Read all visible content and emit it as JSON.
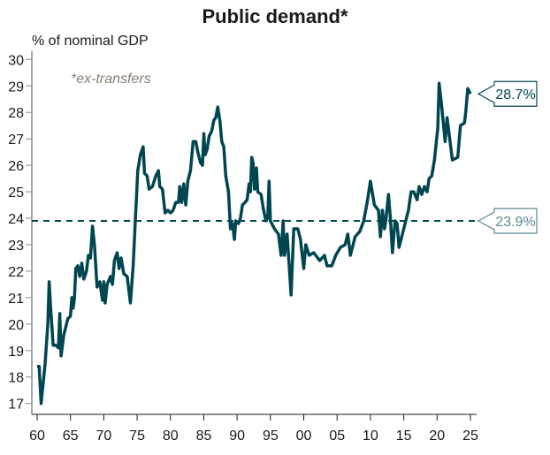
{
  "chart_data": {
    "type": "line",
    "title": "Public demand*",
    "ylabel": "% of nominal GDP",
    "annotation": "*ex-transfers",
    "xlim": [
      1960,
      2025
    ],
    "ylim": [
      17,
      30
    ],
    "x_tick_labels": [
      "60",
      "65",
      "70",
      "75",
      "80",
      "85",
      "90",
      "95",
      "00",
      "05",
      "10",
      "15",
      "20",
      "25"
    ],
    "x_tick_values": [
      1960,
      1965,
      1970,
      1975,
      1980,
      1985,
      1990,
      1995,
      2000,
      2005,
      2010,
      2015,
      2020,
      2025
    ],
    "y_ticks": [
      17,
      18,
      19,
      20,
      21,
      22,
      23,
      24,
      25,
      26,
      27,
      28,
      29,
      30
    ],
    "grid": false,
    "line_color": "#004651",
    "average": {
      "value": 23.9,
      "label": "23.9%",
      "color": "#5a8a93"
    },
    "latest": {
      "value": 28.7,
      "label": "28.7%"
    },
    "series": [
      {
        "x": [
          1960.0,
          1960.3,
          1960.6,
          1961.2,
          1961.6,
          1961.8,
          1962.0,
          1962.4,
          1962.8,
          1963.2,
          1963.4,
          1963.6,
          1964.0,
          1964.6,
          1965.0,
          1965.2,
          1965.4,
          1965.6,
          1965.8,
          1966.1,
          1966.4,
          1966.7,
          1967.0,
          1967.4,
          1967.7,
          1968.0,
          1968.3,
          1968.6,
          1969.0,
          1969.4,
          1969.8,
          1970.0,
          1970.2,
          1970.5,
          1971.0,
          1971.3,
          1971.6,
          1972.0,
          1972.3,
          1972.6,
          1973.0,
          1973.5,
          1974.0,
          1974.4,
          1974.8,
          1975.1,
          1975.5,
          1975.9,
          1976.1,
          1976.5,
          1976.8,
          1977.3,
          1977.8,
          1978.2,
          1978.4,
          1978.8,
          1979.2,
          1979.6,
          1980.0,
          1980.4,
          1980.8,
          1981.2,
          1981.4,
          1981.7,
          1982.0,
          1982.3,
          1982.6,
          1983.0,
          1983.4,
          1983.8,
          1984.1,
          1984.5,
          1984.8,
          1985.0,
          1985.2,
          1985.5,
          1985.8,
          1986.2,
          1986.5,
          1986.8,
          1987.1,
          1987.4,
          1987.7,
          1988.0,
          1988.3,
          1988.7,
          1989.0,
          1989.3,
          1989.6,
          1989.8,
          1990.2,
          1990.5,
          1990.8,
          1991.2,
          1991.5,
          1991.8,
          1992.0,
          1992.2,
          1992.4,
          1992.6,
          1992.9,
          1993.1,
          1993.6,
          1993.9,
          1994.3,
          1994.6,
          1994.8,
          1995.0,
          1995.6,
          1996.2,
          1996.6,
          1996.9,
          1997.1,
          1997.5,
          1998.1,
          1998.5,
          1999.1,
          1999.5,
          2000.0,
          2000.3,
          2000.8,
          2001.5,
          2002.4,
          2003.1,
          2003.5,
          2004.2,
          2004.8,
          2005.5,
          2006.2,
          2006.6,
          2007.0,
          2007.7,
          2008.4,
          2009.0,
          2009.5,
          2010.0,
          2010.6,
          2011.2,
          2011.5,
          2011.8,
          2012.1,
          2012.3,
          2012.7,
          2013.0,
          2013.3,
          2013.7,
          2014.0,
          2014.3,
          2015.0,
          2015.7,
          2016.1,
          2016.5,
          2017.0,
          2017.3,
          2017.7,
          2018.1,
          2018.5,
          2018.8,
          2019.2,
          2019.6,
          2020.1,
          2020.3,
          2020.7,
          2021.2,
          2021.5,
          2021.9,
          2022.3,
          2023.1,
          2023.5,
          2024.1,
          2024.3,
          2024.6,
          2025.0
        ],
        "y": [
          18.4,
          18.4,
          17.0,
          18.5,
          20.0,
          21.6,
          20.7,
          19.2,
          19.2,
          19.1,
          20.4,
          18.8,
          19.6,
          20.2,
          20.3,
          21.0,
          20.6,
          21.0,
          22.1,
          22.2,
          21.8,
          22.3,
          21.7,
          22.0,
          22.6,
          22.5,
          23.7,
          23.0,
          21.4,
          21.6,
          20.9,
          21.6,
          20.8,
          21.5,
          21.8,
          21.5,
          22.4,
          22.7,
          22.1,
          22.5,
          21.9,
          21.8,
          20.8,
          22.2,
          24.3,
          25.8,
          26.4,
          26.7,
          25.7,
          25.6,
          25.1,
          25.2,
          25.6,
          25.8,
          25.2,
          25.1,
          24.2,
          24.3,
          24.2,
          24.3,
          24.6,
          24.6,
          25.2,
          24.6,
          25.3,
          24.5,
          25.4,
          25.8,
          26.9,
          26.9,
          26.5,
          26.1,
          26.0,
          27.2,
          26.4,
          26.6,
          27.1,
          27.3,
          27.7,
          27.8,
          28.2,
          27.7,
          26.9,
          26.7,
          25.6,
          25.0,
          23.6,
          23.8,
          23.2,
          23.9,
          23.8,
          24.0,
          24.5,
          24.6,
          24.7,
          25.3,
          25.0,
          26.3,
          26.1,
          25.1,
          25.9,
          25.0,
          24.9,
          24.4,
          23.9,
          24.0,
          25.4,
          23.9,
          23.6,
          23.4,
          22.6,
          23.9,
          22.6,
          23.4,
          21.1,
          23.6,
          23.6,
          23.2,
          22.1,
          23.0,
          22.6,
          22.7,
          22.4,
          22.6,
          22.2,
          22.2,
          22.6,
          22.9,
          23.0,
          23.4,
          22.6,
          23.3,
          23.5,
          23.9,
          24.6,
          25.4,
          24.5,
          24.3,
          23.3,
          24.3,
          23.6,
          23.9,
          24.9,
          24.0,
          22.7,
          23.9,
          23.8,
          22.9,
          23.6,
          24.3,
          25.0,
          25.0,
          24.7,
          25.2,
          24.9,
          25.2,
          25.0,
          25.5,
          25.6,
          26.2,
          27.4,
          29.1,
          28.2,
          26.9,
          27.8,
          27.0,
          26.2,
          26.3,
          27.5,
          27.6,
          28.0,
          28.9,
          28.7
        ]
      }
    ]
  }
}
